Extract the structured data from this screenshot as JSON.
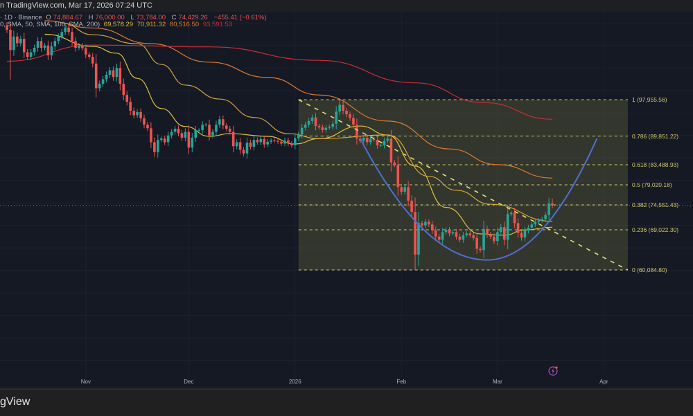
{
  "header": {
    "source_line": "n TradingView.com, Mar 17, 2026 07:24 UTC"
  },
  "legend": {
    "symbol": "· 1D · Binance",
    "open_label": "O",
    "open": "74,884.67",
    "high_label": "H",
    "high": "76,000.00",
    "low_label": "L",
    "low": "73,784.00",
    "close_label": "C",
    "close": "74,429.26",
    "change": "−455.41 (−0.61%)",
    "sma_params": "0, SMA, 50, SMA, 100, SMA, 200)",
    "sma_values": [
      "69,578.29",
      "70,911.32",
      "80,516.50",
      "93,591.53"
    ]
  },
  "footer": {
    "brand": "gView"
  },
  "colors": {
    "up": "#26a69a",
    "down": "#ef5350",
    "sma20": "#e0c23a",
    "sma50": "#d9a43a",
    "sma100": "#e07a2e",
    "sma200": "#c62f36",
    "fib": "#cfc96a",
    "trendline": "#e4e46a",
    "cup": "#4d6fd6",
    "last_price_line": "#ef5350"
  },
  "icons": {
    "alert": "lightning-icon"
  },
  "chart_data": {
    "type": "candlestick",
    "symbol_interval": "1D",
    "exchange": "Binance",
    "start_date": "2025-10-09",
    "closes": [
      113.5,
      109.0,
      112.0,
      110.5,
      111.5,
      108.5,
      107.5,
      108.5,
      109.5,
      111,
      109.5,
      110,
      107.8,
      109.8,
      111,
      112,
      113,
      114,
      113,
      111,
      109.5,
      110,
      109.4,
      108,
      107.5,
      106,
      100.5,
      101.5,
      102.5,
      103.5,
      104.5,
      103,
      105,
      101.5,
      99,
      97.5,
      95.5,
      94.5,
      95.2,
      93.8,
      92.4,
      91.6,
      88.5,
      86.3,
      89,
      89.3,
      88.5,
      90,
      90.8,
      91.5,
      90.5,
      89.5,
      90.8,
      87.3,
      89.5,
      91.2,
      91.2,
      92.4,
      92.4,
      90,
      90.8,
      92.4,
      93.6,
      92.2,
      91.5,
      90.8,
      87.6,
      88.5,
      86.8,
      86,
      88.4,
      87.5,
      89,
      88.5,
      89.2,
      88,
      88.6,
      88.9,
      88.8,
      88.6,
      88.2,
      88.9,
      88.2,
      87.8,
      89.4,
      90.2,
      91.7,
      92.4,
      93.2,
      94,
      92.1,
      91.8,
      91.2,
      91.7,
      91.9,
      92.6,
      95.3,
      96.8,
      95.5,
      94.7,
      93.9,
      92.4,
      89.3,
      88.8,
      89.5,
      88.5,
      89.2,
      89,
      87.8,
      87.8,
      88.8,
      89.3,
      84.0,
      83.5,
      78.5,
      77.5,
      78.5,
      75.5,
      73,
      63.5,
      70.5,
      70,
      70.8,
      70.2,
      68.9,
      67.5,
      66.8,
      68.5,
      69,
      68.2,
      68.5,
      67.5,
      66.8,
      67.8,
      68.2,
      67.8,
      67.2,
      64.8,
      64.5,
      69.2,
      68,
      67.5,
      66.5,
      68.5,
      69.6,
      66.8,
      72.5,
      72.8,
      70.5,
      68.3,
      67.3,
      68.8,
      69.5,
      70.2,
      70.8,
      71.1,
      71.4,
      72.3,
      74.9,
      74.43
    ],
    "price_unit": "thousand USD",
    "last_candle": {
      "open": 74884.67,
      "high": 76000.0,
      "low": 73784.0,
      "close": 74429.26
    },
    "last_price": 74429.26,
    "sma": [
      {
        "name": "SMA 20",
        "value": 69578.29,
        "points": [
          [
            "2025-10-20",
            112.5
          ],
          [
            "2025-11-03",
            109.8
          ],
          [
            "2025-11-10",
            108.3
          ],
          [
            "2025-11-16",
            102.7
          ],
          [
            "2025-11-23",
            96.0
          ],
          [
            "2025-11-30",
            92.0
          ],
          [
            "2025-12-07",
            89.8
          ],
          [
            "2025-12-13",
            90.4
          ],
          [
            "2025-12-24",
            89.8
          ],
          [
            "2026-01-01",
            88.1
          ],
          [
            "2026-01-08",
            89.3
          ],
          [
            "2026-01-20",
            92.1
          ],
          [
            "2026-01-28",
            90.1
          ],
          [
            "2026-02-05",
            83.2
          ],
          [
            "2026-02-14",
            74.0
          ],
          [
            "2026-02-24",
            68.1
          ],
          [
            "2026-03-03",
            67.8
          ],
          [
            "2026-03-09",
            69.0
          ],
          [
            "2026-03-17",
            69.58
          ]
        ]
      },
      {
        "name": "SMA 50",
        "value": 70911.32,
        "points": [
          [
            "2025-10-25",
            115.0
          ],
          [
            "2025-11-03",
            112.4
          ],
          [
            "2025-11-16",
            110.4
          ],
          [
            "2025-11-23",
            105.8
          ],
          [
            "2025-11-30",
            101.2
          ],
          [
            "2025-12-10",
            98.1
          ],
          [
            "2025-12-20",
            94.0
          ],
          [
            "2025-12-30",
            90.4
          ],
          [
            "2026-01-08",
            89.3
          ],
          [
            "2026-01-28",
            90.1
          ],
          [
            "2026-02-09",
            80.9
          ],
          [
            "2026-02-17",
            77.8
          ],
          [
            "2026-02-27",
            74.7
          ],
          [
            "2026-03-17",
            70.91
          ]
        ]
      },
      {
        "name": "SMA 100",
        "value": 80516.5,
        "points": [
          [
            "2025-10-20",
            115.5
          ],
          [
            "2025-11-03",
            113.9
          ],
          [
            "2025-11-20",
            110.4
          ],
          [
            "2025-12-07",
            106.3
          ],
          [
            "2025-12-24",
            102.9
          ],
          [
            "2026-01-08",
            99.0
          ],
          [
            "2026-01-28",
            93.2
          ],
          [
            "2026-02-15",
            87.0
          ],
          [
            "2026-03-01",
            83.5
          ],
          [
            "2026-03-17",
            80.52
          ]
        ]
      },
      {
        "name": "SMA 200",
        "value": 93591.53,
        "points": [
          [
            "2025-10-09",
            106.5
          ],
          [
            "2025-11-03",
            110.1
          ],
          [
            "2025-12-07",
            109.7
          ],
          [
            "2026-01-08",
            106.7
          ],
          [
            "2026-02-05",
            101.7
          ],
          [
            "2026-02-25",
            97.3
          ],
          [
            "2026-03-17",
            93.59
          ]
        ]
      }
    ],
    "fib": {
      "start_date": "2026-01-02",
      "end_date": "2026-04-08",
      "levels": [
        {
          "ratio": 1,
          "price": 97955.56,
          "label": "1 (97,955.56)"
        },
        {
          "ratio": 0.786,
          "price": 89851.22,
          "label": "0.786 (89,851.22)"
        },
        {
          "ratio": 0.618,
          "price": 83488.93,
          "label": "0.618 (83,488.93)"
        },
        {
          "ratio": 0.5,
          "price": 79020.18,
          "label": "0.5 (79,020.18)"
        },
        {
          "ratio": 0.382,
          "price": 74551.43,
          "label": "0.382 (74,551.43)"
        },
        {
          "ratio": 0.236,
          "price": 69022.3,
          "label": "0.236 (69,022.30)"
        },
        {
          "ratio": 0,
          "price": 60084.8,
          "label": "0 (60,084.80)"
        }
      ]
    },
    "trendline": {
      "from": [
        "2026-01-02",
        97955.56
      ],
      "to": [
        "2026-04-08",
        60084.8
      ]
    },
    "cup_arc": {
      "left": [
        "2026-01-20",
        89300
      ],
      "bottom": [
        "2026-02-26",
        62300
      ],
      "right": [
        "2026-03-30",
        89300
      ]
    },
    "time_ticks": [
      {
        "date": "2025-11-01",
        "label": "Nov"
      },
      {
        "date": "2025-12-01",
        "label": "Dec"
      },
      {
        "date": "2026-01-01",
        "label": "2026"
      },
      {
        "date": "2026-02-01",
        "label": "Feb"
      },
      {
        "date": "2026-03-01",
        "label": "Mar"
      },
      {
        "date": "2026-04-01",
        "label": "Apr"
      }
    ],
    "grid": true
  }
}
